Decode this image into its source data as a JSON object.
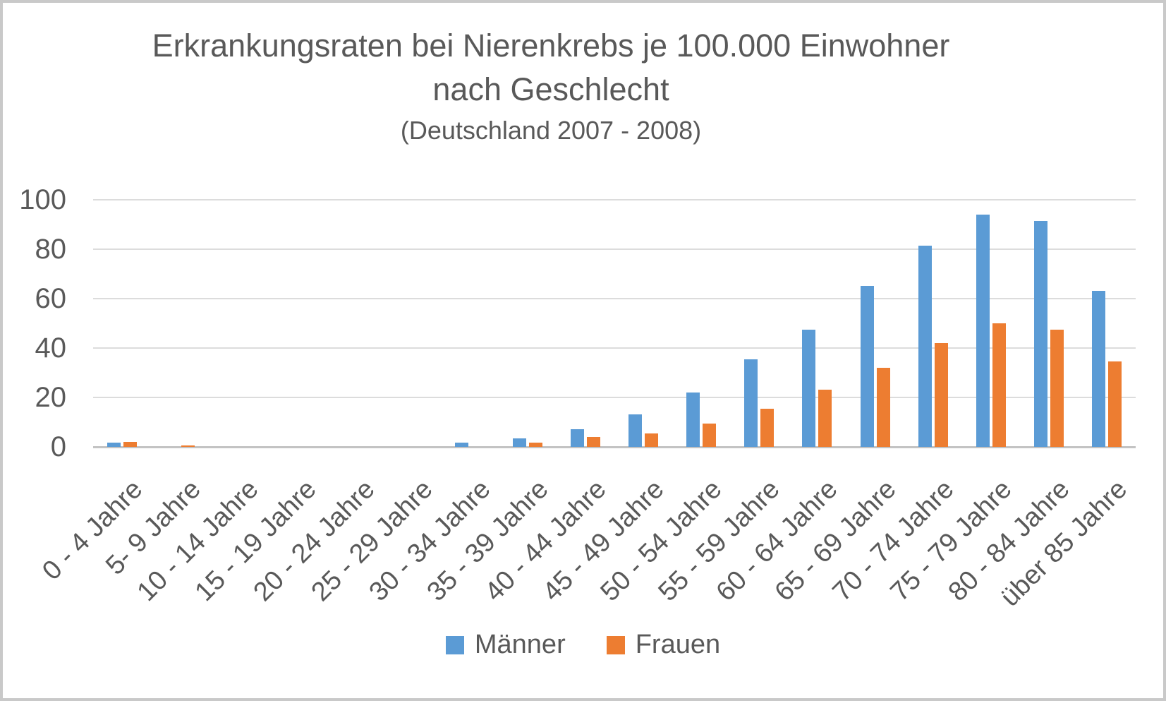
{
  "window": {
    "background": "#ffffff",
    "border_color": "#c9c9c9"
  },
  "chart_data": {
    "type": "bar",
    "title": "Erkrankungsraten bei Nierenkrebs je 100.000 Einwohner",
    "title_line2": "nach Geschlecht",
    "subtitle": "(Deutschland 2007 - 2008)",
    "categories": [
      "0 - 4 Jahre",
      "5- 9 Jahre",
      "10 - 14 Jahre",
      "15 - 19 Jahre",
      "20 - 24 Jahre",
      "25 - 29 Jahre",
      "30 - 34 Jahre",
      "35 - 39 Jahre",
      "40 - 44 Jahre",
      "45 - 49 Jahre",
      "50 - 54 Jahre",
      "55 - 59 Jahre",
      "60 - 64 Jahre",
      "65 - 69 Jahre",
      "70 - 74 Jahre",
      "75 - 79 Jahre",
      "80 - 84 Jahre",
      "über 85 Jahre"
    ],
    "series": [
      {
        "name": "Männer",
        "color": "#5B9BD5",
        "values": [
          1.7,
          0,
          0,
          0,
          0,
          0,
          1.6,
          3.5,
          7,
          13,
          22,
          35.5,
          47.5,
          65,
          81.5,
          94,
          91.5,
          63
        ]
      },
      {
        "name": "Frauen",
        "color": "#ED7D31",
        "values": [
          1.9,
          0.6,
          0,
          0,
          0,
          0,
          0,
          1.6,
          4,
          5.5,
          9.5,
          15.5,
          23,
          32,
          42,
          50,
          47.5,
          34.5
        ]
      }
    ],
    "xlabel": "",
    "ylabel": "",
    "ylim": [
      0,
      100
    ],
    "yticks": [
      0,
      20,
      40,
      60,
      80,
      100
    ],
    "grid": "horizontal",
    "legend_position": "bottom",
    "colors": {
      "gridline": "#dcdcdc",
      "axis_line": "#c3c3c3",
      "text": "#595959"
    }
  }
}
